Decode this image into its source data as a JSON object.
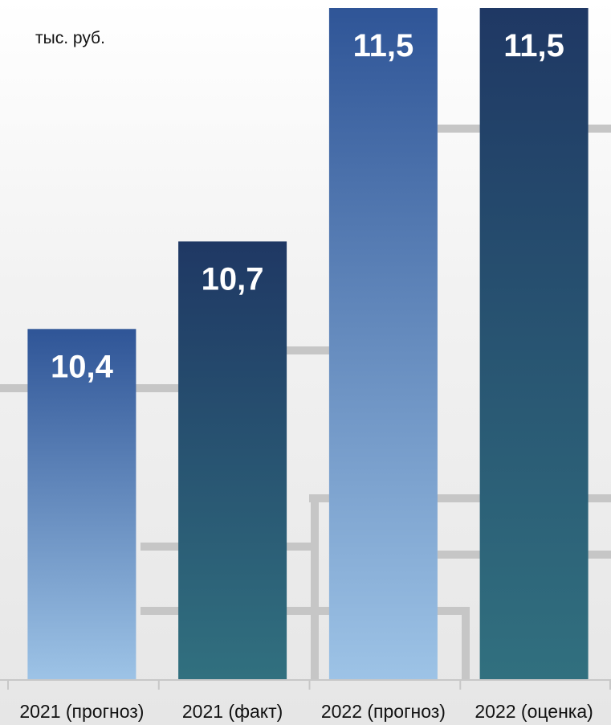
{
  "unit_label": "тыс. руб.",
  "chart_data": {
    "type": "bar",
    "title": "",
    "xlabel": "",
    "ylabel": "",
    "unit": "тыс. руб.",
    "categories": [
      "2021 (прогноз)",
      "2021 (факт)",
      "2022 (прогноз)",
      "2022 (оценка)"
    ],
    "values": [
      10.4,
      10.7,
      11.5,
      11.5
    ],
    "data_labels": [
      "10,4",
      "10,7",
      "11,5",
      "11,5"
    ],
    "ylim": [
      9.2,
      11.5
    ],
    "grid": false,
    "legend": "none",
    "colors": {
      "blue_top": "#2f5597",
      "blue_bottom": "#9dc3e6",
      "teal_top": "#1f3864",
      "teal_bottom": "#31707f",
      "label_text": "#ffffff",
      "axis": "#c8c8c8",
      "decor_lines": "#c6c6c6"
    },
    "bar_styles": [
      "blue",
      "teal",
      "blue",
      "teal"
    ]
  }
}
